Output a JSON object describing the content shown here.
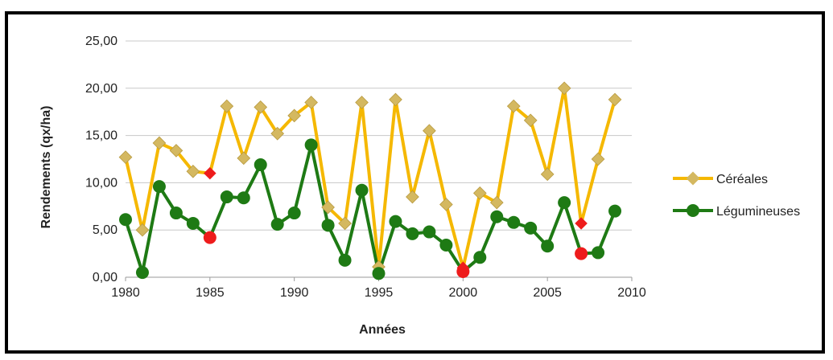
{
  "chart_data": {
    "type": "line",
    "xlabel": "Années",
    "ylabel": "Rendements (qx/ha)",
    "xlim": [
      1980,
      2010
    ],
    "ylim": [
      0,
      25
    ],
    "x_ticks": [
      "1980",
      "1985",
      "1990",
      "1995",
      "2000",
      "2005",
      "2010"
    ],
    "y_ticks": [
      "0,00",
      "5,00",
      "10,00",
      "15,00",
      "20,00",
      "25,00"
    ],
    "grid": "horizontal",
    "legend_position": "right",
    "x": [
      1980,
      1981,
      1982,
      1983,
      1984,
      1985,
      1986,
      1987,
      1988,
      1989,
      1990,
      1991,
      1992,
      1993,
      1994,
      1995,
      1996,
      1997,
      1998,
      1999,
      2000,
      2001,
      2002,
      2003,
      2004,
      2005,
      2006,
      2007,
      2008,
      2009
    ],
    "series": [
      {
        "name": "Céréales",
        "color": "#F5B800",
        "marker": "diamond",
        "marker_color": "#D4B860",
        "values": [
          12.7,
          5.0,
          14.2,
          13.4,
          11.2,
          11.0,
          18.1,
          12.6,
          18.0,
          15.2,
          17.1,
          18.5,
          7.4,
          5.7,
          18.5,
          1.1,
          18.8,
          8.5,
          15.5,
          7.7,
          1.0,
          8.9,
          7.9,
          18.1,
          16.6,
          10.9,
          20.0,
          5.7,
          12.5,
          18.8
        ]
      },
      {
        "name": "Légumineuses",
        "color": "#1E7A14",
        "marker": "circle",
        "marker_color": "#1E7A14",
        "values": [
          6.1,
          0.5,
          9.6,
          6.8,
          5.7,
          4.2,
          8.5,
          8.4,
          11.9,
          5.6,
          6.8,
          14.0,
          5.5,
          1.8,
          9.2,
          0.4,
          5.9,
          4.6,
          4.8,
          3.4,
          0.6,
          2.1,
          6.4,
          5.8,
          5.2,
          3.3,
          7.9,
          2.5,
          2.6,
          7.0
        ]
      }
    ],
    "highlight_color": "#EE1C1C",
    "highlighted_years": [
      1985,
      2000,
      2007
    ]
  }
}
